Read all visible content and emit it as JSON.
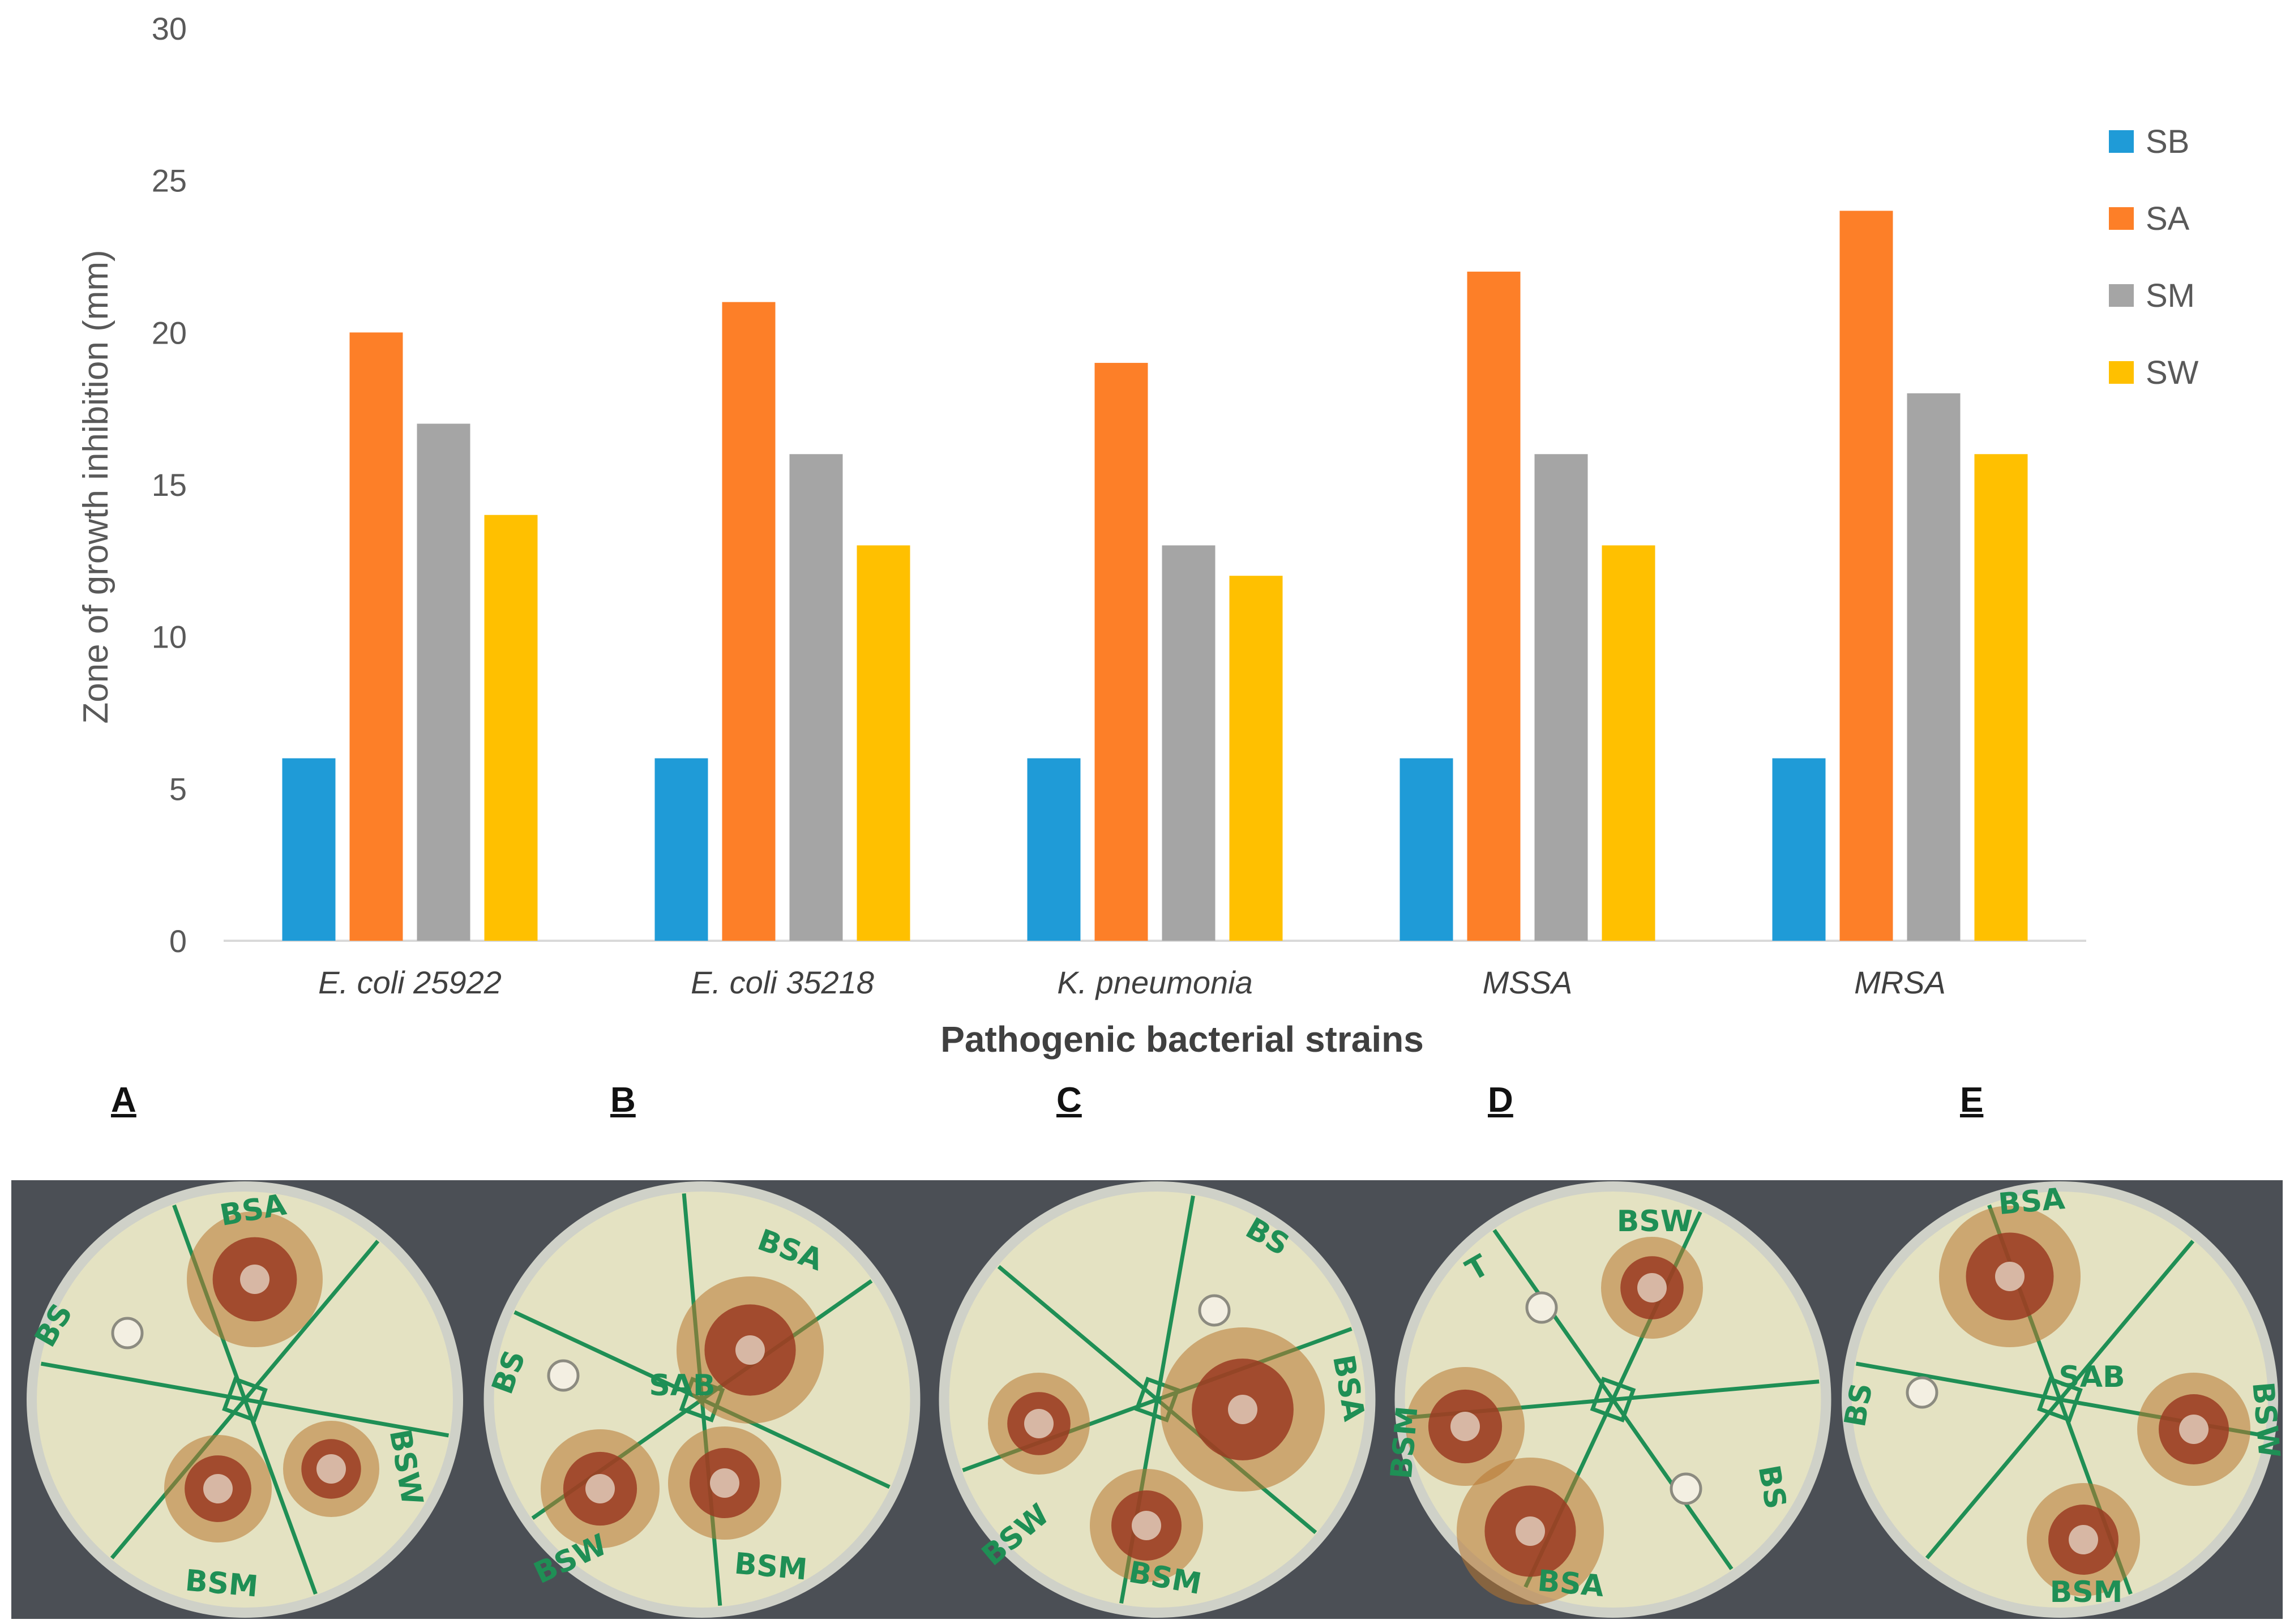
{
  "chart_data": {
    "type": "bar",
    "title": "",
    "xlabel": "Pathogenic bacterial strains",
    "ylabel": "Zone of growth inhibition (mm)",
    "ylim": [
      0,
      30
    ],
    "yticks": [
      0,
      5,
      10,
      15,
      20,
      25,
      30
    ],
    "categories": [
      "E. coli 25922",
      "E. coli 35218",
      "K. pneumonia",
      "MSSA",
      "MRSA"
    ],
    "series": [
      {
        "name": "SB",
        "color": "#1f9bd7",
        "values": [
          6,
          6,
          6,
          6,
          6
        ]
      },
      {
        "name": "SA",
        "color": "#fd7f28",
        "values": [
          20,
          21,
          19,
          22,
          24
        ]
      },
      {
        "name": "SM",
        "color": "#a5a5a5",
        "values": [
          17,
          16,
          13,
          16,
          18
        ]
      },
      {
        "name": "SW",
        "color": "#ffc000",
        "values": [
          14,
          13,
          12,
          13,
          16
        ]
      }
    ],
    "legend_position": "right",
    "grid": false
  },
  "panels": [
    {
      "label": "A",
      "plate_marks": [
        "BSA",
        "BS",
        "BSM",
        "BSW"
      ]
    },
    {
      "label": "B",
      "plate_marks": [
        "BSA",
        "BS",
        "BSW",
        "BSM",
        "SAB"
      ]
    },
    {
      "label": "C",
      "plate_marks": [
        "BS",
        "BSA",
        "BSW",
        "BSM"
      ]
    },
    {
      "label": "D",
      "plate_marks": [
        "BSW",
        "T",
        "BSM",
        "BSA",
        "BS"
      ]
    },
    {
      "label": "E",
      "plate_marks": [
        "BSA",
        "BS",
        "BSW",
        "BSM",
        "SAB"
      ]
    }
  ]
}
